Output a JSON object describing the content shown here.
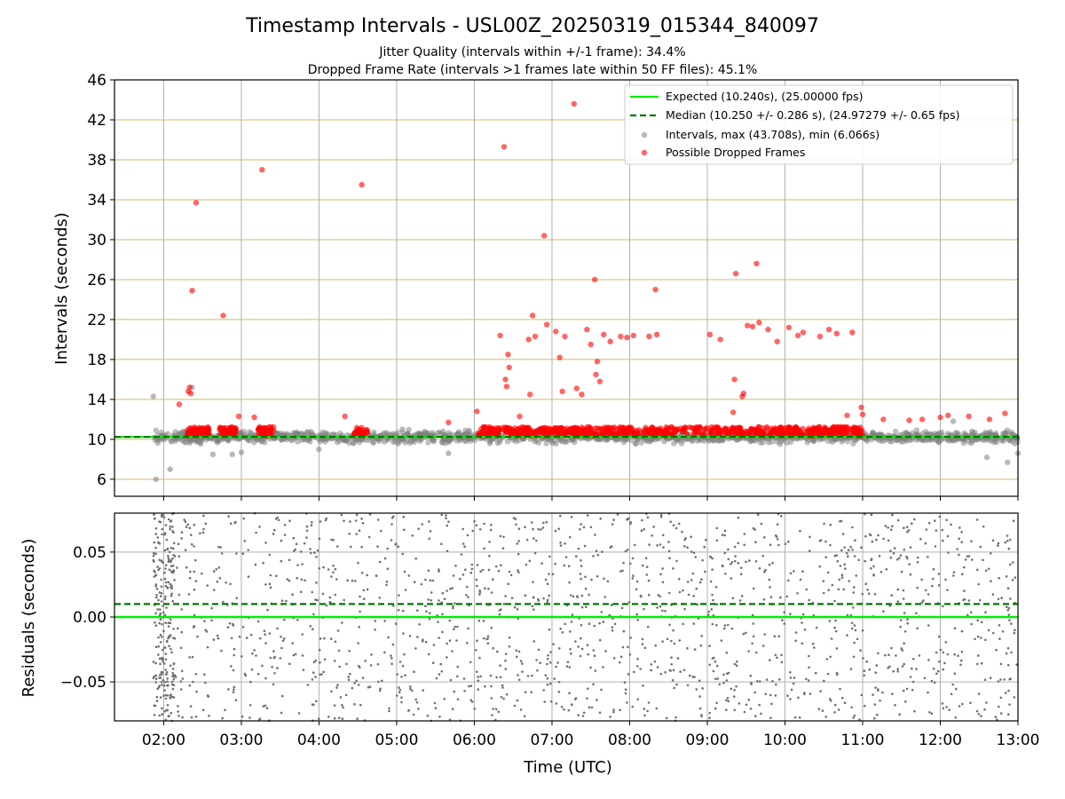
{
  "chart_data": {
    "type": "scatter",
    "title": "Timestamp Intervals - USL00Z_20250319_015344_840097",
    "subtitle_lines": [
      "Jitter Quality (intervals within +/-1 frame): 34.4%",
      "Dropped Frame Rate (intervals >1 frames late within 50 FF files): 45.1%"
    ],
    "xlabel": "Time (UTC)",
    "x_range": [
      "01:22",
      "13:00"
    ],
    "x_ticks": [
      "02:00",
      "03:00",
      "04:00",
      "05:00",
      "06:00",
      "07:00",
      "08:00",
      "09:00",
      "10:00",
      "11:00",
      "12:00",
      "13:00"
    ],
    "grid": true,
    "colors": {
      "expected": "#00ee00",
      "median": "#007700",
      "intervals": "#808080",
      "dropped": "#ff0000",
      "interval_gridline": "#d4b96a"
    },
    "top_panel": {
      "ylabel": "Intervals (seconds)",
      "ylim": [
        4.3,
        46
      ],
      "y_ticks": [
        6,
        10,
        14,
        18,
        22,
        26,
        30,
        34,
        38,
        42,
        46
      ],
      "expected_value": 10.24,
      "median_value": 10.25,
      "legend_position": "top-right",
      "legend": [
        "Expected (10.240s), (25.00000 fps)",
        "Median (10.250 +/- 0.286 s), (24.97279 +/- 0.65 fps)",
        "Intervals, max (43.708s), min (6.066s)",
        "Possible Dropped Frames"
      ],
      "dropped_outliers": [
        {
          "x": "02:12",
          "y": 13.5
        },
        {
          "x": "02:19",
          "y": 14.8
        },
        {
          "x": "02:20",
          "y": 15.2
        },
        {
          "x": "02:21",
          "y": 14.6
        },
        {
          "x": "02:22",
          "y": 24.9
        },
        {
          "x": "02:25",
          "y": 33.7
        },
        {
          "x": "02:46",
          "y": 22.4
        },
        {
          "x": "02:58",
          "y": 12.3
        },
        {
          "x": "03:10",
          "y": 12.2
        },
        {
          "x": "03:16",
          "y": 37.0
        },
        {
          "x": "04:20",
          "y": 12.3
        },
        {
          "x": "04:33",
          "y": 35.5
        },
        {
          "x": "05:40",
          "y": 11.7
        },
        {
          "x": "06:02",
          "y": 12.8
        },
        {
          "x": "06:20",
          "y": 20.4
        },
        {
          "x": "06:23",
          "y": 39.3
        },
        {
          "x": "06:24",
          "y": 16.0
        },
        {
          "x": "06:25",
          "y": 15.3
        },
        {
          "x": "06:26",
          "y": 18.5
        },
        {
          "x": "06:27",
          "y": 17.2
        },
        {
          "x": "06:35",
          "y": 12.3
        },
        {
          "x": "06:42",
          "y": 20.0
        },
        {
          "x": "06:43",
          "y": 14.5
        },
        {
          "x": "06:45",
          "y": 22.4
        },
        {
          "x": "06:47",
          "y": 20.3
        },
        {
          "x": "06:54",
          "y": 30.4
        },
        {
          "x": "06:56",
          "y": 21.5
        },
        {
          "x": "07:03",
          "y": 20.8
        },
        {
          "x": "07:06",
          "y": 18.2
        },
        {
          "x": "07:08",
          "y": 14.8
        },
        {
          "x": "07:10",
          "y": 20.3
        },
        {
          "x": "07:17",
          "y": 43.6
        },
        {
          "x": "07:19",
          "y": 15.1
        },
        {
          "x": "07:23",
          "y": 14.5
        },
        {
          "x": "07:27",
          "y": 21.0
        },
        {
          "x": "07:30",
          "y": 19.5
        },
        {
          "x": "07:33",
          "y": 26.0
        },
        {
          "x": "07:34",
          "y": 16.5
        },
        {
          "x": "07:35",
          "y": 17.8
        },
        {
          "x": "07:37",
          "y": 15.8
        },
        {
          "x": "07:40",
          "y": 20.5
        },
        {
          "x": "07:45",
          "y": 19.8
        },
        {
          "x": "07:53",
          "y": 20.3
        },
        {
          "x": "07:58",
          "y": 20.2
        },
        {
          "x": "08:03",
          "y": 20.4
        },
        {
          "x": "08:15",
          "y": 20.3
        },
        {
          "x": "08:20",
          "y": 25.0
        },
        {
          "x": "08:21",
          "y": 20.5
        },
        {
          "x": "09:02",
          "y": 20.5
        },
        {
          "x": "09:10",
          "y": 20.0
        },
        {
          "x": "09:20",
          "y": 12.7
        },
        {
          "x": "09:21",
          "y": 16.0
        },
        {
          "x": "09:22",
          "y": 26.6
        },
        {
          "x": "09:27",
          "y": 14.3
        },
        {
          "x": "09:28",
          "y": 14.6
        },
        {
          "x": "09:31",
          "y": 21.4
        },
        {
          "x": "09:35",
          "y": 21.3
        },
        {
          "x": "09:38",
          "y": 27.6
        },
        {
          "x": "09:40",
          "y": 21.7
        },
        {
          "x": "09:47",
          "y": 21.0
        },
        {
          "x": "09:54",
          "y": 19.8
        },
        {
          "x": "10:03",
          "y": 21.2
        },
        {
          "x": "10:10",
          "y": 20.4
        },
        {
          "x": "10:14",
          "y": 20.7
        },
        {
          "x": "10:27",
          "y": 20.3
        },
        {
          "x": "10:34",
          "y": 21.0
        },
        {
          "x": "10:40",
          "y": 20.6
        },
        {
          "x": "10:48",
          "y": 12.4
        },
        {
          "x": "10:52",
          "y": 20.7
        },
        {
          "x": "10:59",
          "y": 13.2
        },
        {
          "x": "11:00",
          "y": 12.5
        },
        {
          "x": "11:16",
          "y": 12.0
        },
        {
          "x": "11:36",
          "y": 11.9
        },
        {
          "x": "11:46",
          "y": 12.0
        },
        {
          "x": "12:00",
          "y": 12.2
        },
        {
          "x": "12:06",
          "y": 12.4
        },
        {
          "x": "12:22",
          "y": 12.3
        },
        {
          "x": "12:38",
          "y": 12.0
        },
        {
          "x": "12:50",
          "y": 12.6
        }
      ],
      "interval_outliers": [
        {
          "x": "01:52",
          "y": 14.3
        },
        {
          "x": "01:54",
          "y": 6.0
        },
        {
          "x": "02:05",
          "y": 7.0
        },
        {
          "x": "02:22",
          "y": 15.2
        },
        {
          "x": "02:38",
          "y": 8.5
        },
        {
          "x": "02:53",
          "y": 8.5
        },
        {
          "x": "03:00",
          "y": 8.7
        },
        {
          "x": "04:00",
          "y": 9.0
        },
        {
          "x": "05:40",
          "y": 8.6
        },
        {
          "x": "12:10",
          "y": 11.8
        },
        {
          "x": "12:36",
          "y": 8.2
        },
        {
          "x": "12:52",
          "y": 7.7
        },
        {
          "x": "13:00",
          "y": 8.6
        }
      ]
    },
    "bottom_panel": {
      "ylabel": "Residuals (seconds)",
      "ylim": [
        -0.08,
        0.08
      ],
      "y_ticks": [
        "0.05",
        "0.00",
        "−0.05"
      ],
      "expected_residual": 0.0,
      "median_residual": 0.01
    }
  }
}
